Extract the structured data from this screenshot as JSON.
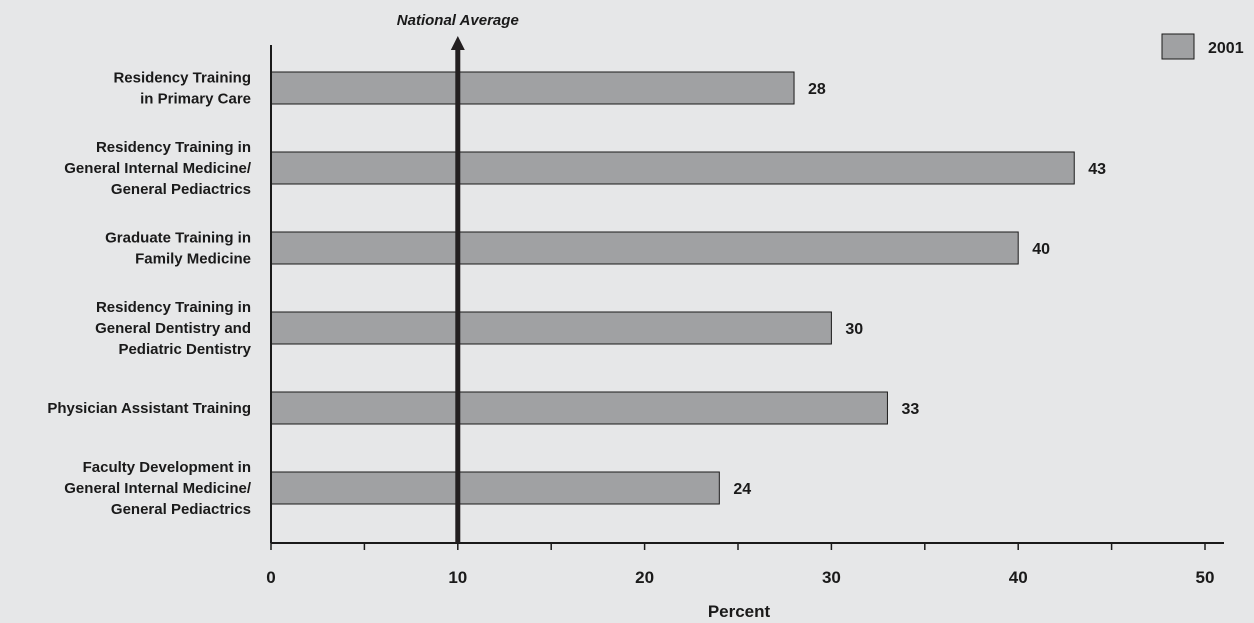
{
  "chart_data": {
    "type": "bar",
    "orientation": "horizontal",
    "categories": [
      [
        "Residency Training",
        "in Primary Care"
      ],
      [
        "Residency Training in",
        "General Internal Medicine/",
        "General Pediactrics"
      ],
      [
        "Graduate Training in",
        "Family Medicine"
      ],
      [
        "Residency Training in",
        "General Dentistry and",
        "Pediatric Dentistry"
      ],
      [
        "Physician Assistant Training"
      ],
      [
        "Faculty Development in",
        "General Internal Medicine/",
        "General Pediactrics"
      ]
    ],
    "series": [
      {
        "name": "2001",
        "values": [
          28,
          43,
          40,
          30,
          33,
          24
        ],
        "color": "#a0a1a3"
      }
    ],
    "xlabel": "Percent",
    "xlim": [
      0,
      50
    ],
    "major_ticks": [
      0,
      10,
      20,
      30,
      40,
      50
    ],
    "minor_ticks": [
      5,
      15,
      25,
      35,
      45
    ],
    "reference_line": {
      "label": "National Average",
      "value": 10,
      "color": "#231f20"
    },
    "legend_position": "top-right",
    "grid": false
  }
}
